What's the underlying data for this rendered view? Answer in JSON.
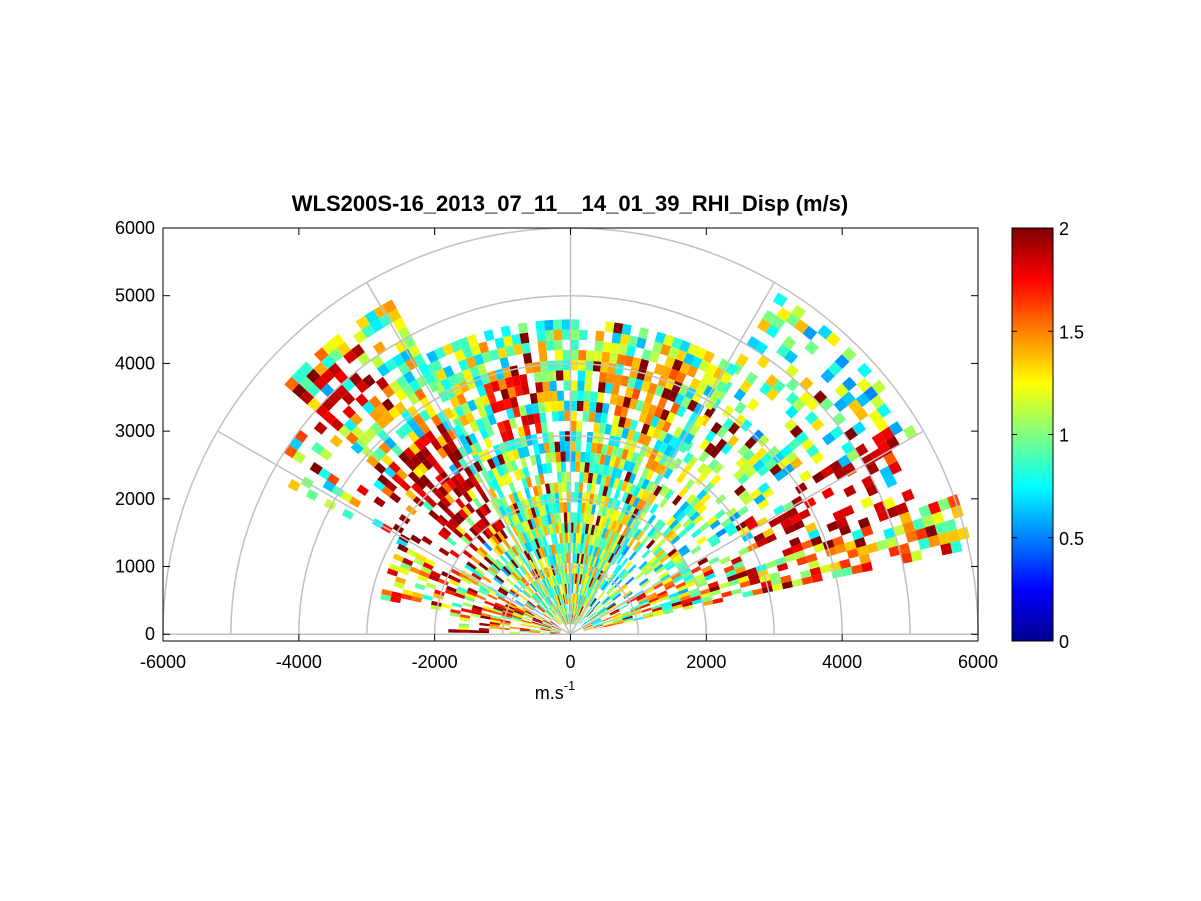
{
  "figure": {
    "title": "WLS200S-16_2013_07_11__14_01_39_RHI_Disp (m/s)",
    "xlabel_main": "m.s",
    "xlabel_sup": "-1"
  },
  "chart_data": {
    "type": "heatmap",
    "projection": "polar-rhi",
    "title": "WLS200S-16_2013_07_11__14_01_39_RHI_Disp (m/s)",
    "xlabel": "m.s-1",
    "ylabel": "",
    "xlim": [
      -6000,
      6000
    ],
    "ylim": [
      -100,
      6000
    ],
    "x_ticks": [
      -6000,
      -4000,
      -2000,
      0,
      2000,
      4000,
      6000
    ],
    "y_ticks": [
      0,
      1000,
      2000,
      3000,
      4000,
      5000,
      6000
    ],
    "range_rings": [
      1000,
      2000,
      3000,
      4000,
      5000,
      6000
    ],
    "spokes_deg": [
      0,
      30,
      60,
      90,
      120,
      150,
      180
    ],
    "colorbar": {
      "colormap": "jet",
      "min": 0,
      "max": 2,
      "ticks": [
        0,
        0.5,
        1,
        1.5,
        2
      ]
    },
    "range_gate_m": 150,
    "elevation_sectors": [
      {
        "az_from": 12,
        "az_to": 20,
        "r_min": 200,
        "r_max": 6000,
        "mean": 1.3,
        "spread": 0.6,
        "density": 0.75
      },
      {
        "az_from": 20,
        "az_to": 30,
        "r_min": 200,
        "r_max": 5400,
        "mean": 1.2,
        "spread": 0.65,
        "density": 0.55
      },
      {
        "az_from": 30,
        "az_to": 58,
        "r_min": 200,
        "r_max": 5800,
        "mean": 0.95,
        "spread": 0.45,
        "density": 0.55
      },
      {
        "az_from": 58,
        "az_to": 118,
        "r_min": 150,
        "r_max": 4600,
        "mean": 1.05,
        "spread": 0.45,
        "density": 0.95
      },
      {
        "az_from": 118,
        "az_to": 138,
        "r_min": 200,
        "r_max": 5600,
        "mean": 1.05,
        "spread": 0.5,
        "density": 0.8
      },
      {
        "az_from": 138,
        "az_to": 152,
        "r_min": 200,
        "r_max": 5000,
        "mean": 1.2,
        "spread": 0.6,
        "density": 0.35
      },
      {
        "az_from": 152,
        "az_to": 168,
        "r_min": 150,
        "r_max": 2800,
        "mean": 1.4,
        "spread": 0.6,
        "density": 0.6
      },
      {
        "az_from": 168,
        "az_to": 178,
        "r_min": 150,
        "r_max": 1800,
        "mean": 1.5,
        "spread": 0.6,
        "density": 0.5
      }
    ],
    "high_value_patches": [
      {
        "az_from": 20,
        "az_to": 32,
        "r_min": 3000,
        "r_max": 5600,
        "value": 2.0
      },
      {
        "az_from": 64,
        "az_to": 82,
        "r_min": 3200,
        "r_max": 4100,
        "value": 1.6
      },
      {
        "az_from": 95,
        "az_to": 108,
        "r_min": 3000,
        "r_max": 3800,
        "value": 1.9
      },
      {
        "az_from": 120,
        "az_to": 148,
        "r_min": 1800,
        "r_max": 3600,
        "value": 2.0
      },
      {
        "az_from": 125,
        "az_to": 140,
        "r_min": 4500,
        "r_max": 5200,
        "value": 2.0
      }
    ]
  }
}
